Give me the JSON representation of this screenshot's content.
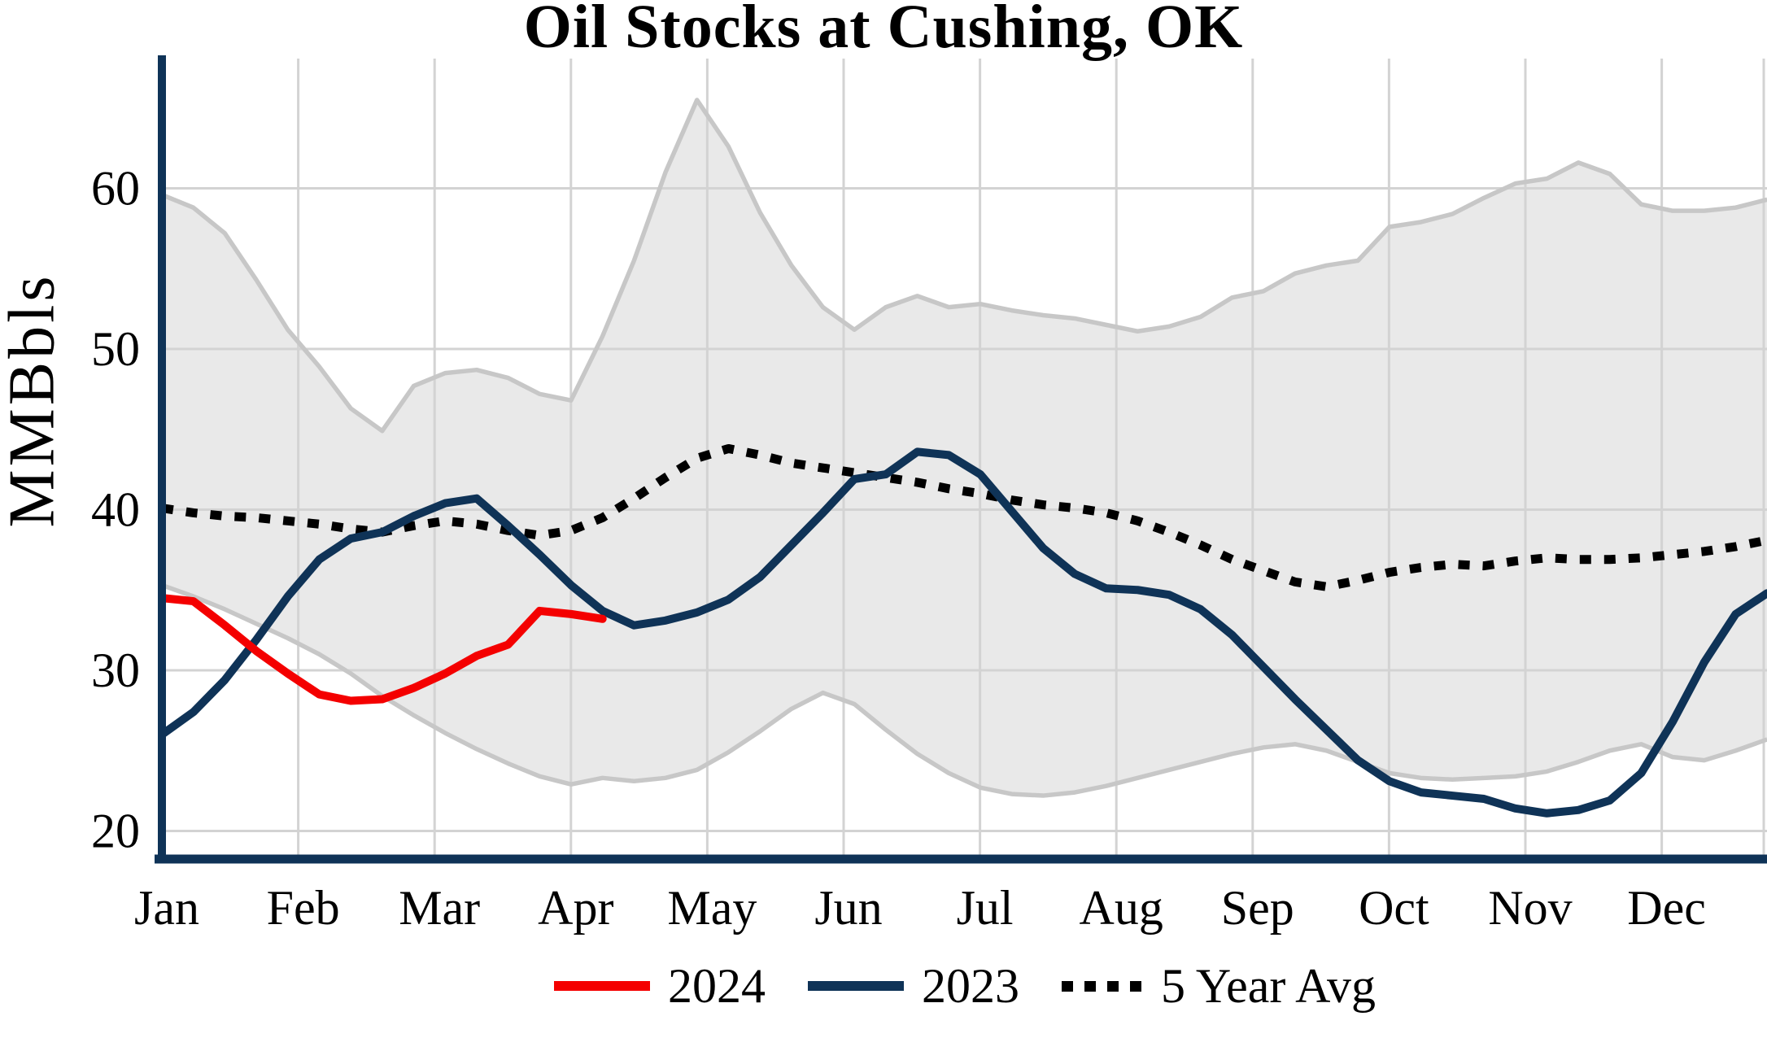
{
  "chart_data": {
    "type": "line",
    "title": "Oil Stocks at Cushing, OK",
    "ylabel": "MMBbls",
    "xlabel": "",
    "x_tick_labels": [
      "Jan",
      "Feb",
      "Mar",
      "Apr",
      "May",
      "Jun",
      "Jul",
      "Aug",
      "Sep",
      "Oct",
      "Nov",
      "Dec"
    ],
    "yticks": [
      20,
      30,
      40,
      50,
      60
    ],
    "ylim": [
      18,
      68
    ],
    "x_unit": "weekly points, Jan through Dec (52 weeks)",
    "grid": true,
    "legend_position": "bottom center",
    "series": [
      {
        "name": "2024",
        "color": "#f40000",
        "dash": "solid",
        "values": [
          34.5,
          34.3,
          32.8,
          31.2,
          29.8,
          28.5,
          28.1,
          28.2,
          28.9,
          29.8,
          30.9,
          31.6,
          33.7,
          33.5,
          33.2
        ]
      },
      {
        "name": "2023",
        "color": "#0f3357",
        "dash": "solid",
        "values": [
          26.0,
          27.4,
          29.4,
          31.9,
          34.6,
          36.9,
          38.2,
          38.6,
          39.6,
          40.4,
          40.7,
          39.0,
          37.2,
          35.3,
          33.7,
          32.8,
          33.1,
          33.6,
          34.4,
          35.8,
          37.8,
          39.8,
          41.9,
          42.2,
          43.6,
          43.4,
          42.2,
          39.9,
          37.6,
          36.0,
          35.1,
          35.0,
          34.7,
          33.8,
          32.2,
          30.2,
          28.2,
          26.3,
          24.4,
          23.1,
          22.4,
          22.2,
          22.0,
          21.4,
          21.1,
          21.3,
          21.9,
          23.6,
          26.8,
          30.5,
          33.5,
          34.8
        ]
      },
      {
        "name": "5 Year Avg",
        "color": "#000000",
        "dash": "dotted",
        "values": [
          40.1,
          39.8,
          39.6,
          39.5,
          39.3,
          39.1,
          38.8,
          38.6,
          39.0,
          39.3,
          39.1,
          38.7,
          38.4,
          38.7,
          39.5,
          40.7,
          42.0,
          43.2,
          43.8,
          43.4,
          42.9,
          42.6,
          42.3,
          42.0,
          41.7,
          41.3,
          41.0,
          40.6,
          40.3,
          40.1,
          39.8,
          39.3,
          38.6,
          37.8,
          36.9,
          36.2,
          35.5,
          35.2,
          35.6,
          36.1,
          36.4,
          36.6,
          36.5,
          36.8,
          37.0,
          36.9,
          36.9,
          37.0,
          37.2,
          37.4,
          37.7,
          38.1
        ]
      }
    ],
    "range_band": {
      "name": "gray range band",
      "fill": "#e9e9e9",
      "edge_color": "#c7c7c7",
      "upper": [
        59.6,
        58.8,
        57.2,
        54.3,
        51.2,
        48.9,
        46.3,
        44.9,
        47.7,
        48.5,
        48.7,
        48.2,
        47.2,
        46.8,
        50.8,
        55.5,
        61.0,
        65.5,
        62.6,
        58.5,
        55.2,
        52.6,
        51.2,
        52.6,
        53.3,
        52.6,
        52.8,
        52.4,
        52.1,
        51.9,
        51.5,
        51.1,
        51.4,
        52.0,
        53.2,
        53.6,
        54.7,
        55.2,
        55.5,
        57.6,
        57.9,
        58.4,
        59.4,
        60.3,
        60.6,
        61.6,
        60.9,
        59.0,
        58.6,
        58.6,
        58.8,
        59.3
      ],
      "lower": [
        35.3,
        34.6,
        33.8,
        32.9,
        32.0,
        31.0,
        29.8,
        28.4,
        27.2,
        26.1,
        25.1,
        24.2,
        23.4,
        22.9,
        23.3,
        23.1,
        23.3,
        23.8,
        24.9,
        26.2,
        27.6,
        28.6,
        27.9,
        26.3,
        24.8,
        23.6,
        22.7,
        22.3,
        22.2,
        22.4,
        22.8,
        23.3,
        23.8,
        24.3,
        24.8,
        25.2,
        25.4,
        25.0,
        24.3,
        23.6,
        23.3,
        23.2,
        23.3,
        23.4,
        23.7,
        24.3,
        25.0,
        25.4,
        24.6,
        24.4,
        25.0,
        25.7
      ]
    },
    "style": {
      "grid_color": "#d3d3d3",
      "spine_color": "#0f3357",
      "background": "#ffffff"
    }
  }
}
